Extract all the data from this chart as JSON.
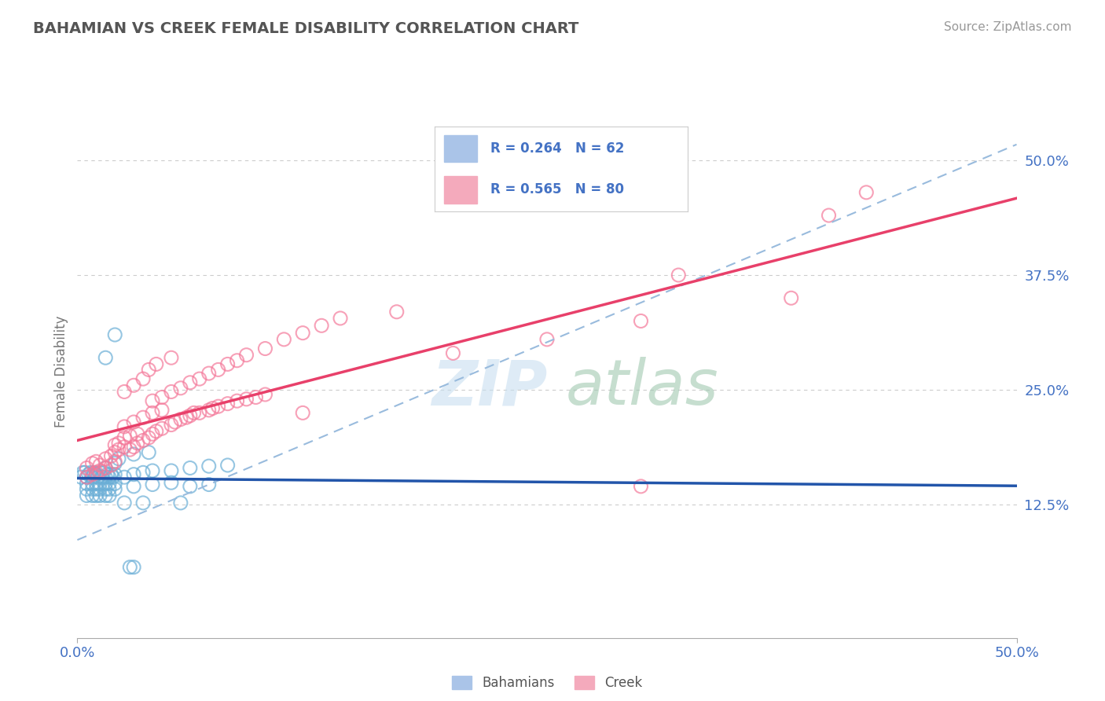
{
  "title": "BAHAMIAN VS CREEK FEMALE DISABILITY CORRELATION CHART",
  "source_text": "Source: ZipAtlas.com",
  "ylabel": "Female Disability",
  "xlim": [
    0.0,
    0.5
  ],
  "ylim": [
    -0.02,
    0.56
  ],
  "y_ticks": [
    0.125,
    0.25,
    0.375,
    0.5
  ],
  "y_tick_labels": [
    "12.5%",
    "25.0%",
    "37.5%",
    "50.0%"
  ],
  "x_ticks": [
    0.0,
    0.5
  ],
  "x_tick_labels": [
    "0.0%",
    "50.0%"
  ],
  "bahamian_color": "#6aaed6",
  "creek_color": "#f4799a",
  "bahamian_line_color": "#2255aa",
  "creek_line_color": "#e8406a",
  "dashed_line_color": "#99bbdd",
  "tick_label_color": "#4472c4",
  "title_color": "#555555",
  "axis_label_color": "#777777",
  "grid_color": "#cccccc",
  "watermark": "ZIPatlas",
  "bahamian_scatter": [
    [
      0.002,
      0.155
    ],
    [
      0.003,
      0.16
    ],
    [
      0.004,
      0.16
    ],
    [
      0.005,
      0.155
    ],
    [
      0.006,
      0.158
    ],
    [
      0.007,
      0.16
    ],
    [
      0.008,
      0.155
    ],
    [
      0.009,
      0.16
    ],
    [
      0.01,
      0.158
    ],
    [
      0.011,
      0.155
    ],
    [
      0.012,
      0.16
    ],
    [
      0.013,
      0.155
    ],
    [
      0.014,
      0.16
    ],
    [
      0.015,
      0.155
    ],
    [
      0.016,
      0.158
    ],
    [
      0.017,
      0.155
    ],
    [
      0.018,
      0.158
    ],
    [
      0.019,
      0.155
    ],
    [
      0.02,
      0.158
    ],
    [
      0.005,
      0.148
    ],
    [
      0.008,
      0.148
    ],
    [
      0.01,
      0.148
    ],
    [
      0.012,
      0.148
    ],
    [
      0.015,
      0.148
    ],
    [
      0.017,
      0.148
    ],
    [
      0.02,
      0.148
    ],
    [
      0.005,
      0.142
    ],
    [
      0.008,
      0.142
    ],
    [
      0.01,
      0.142
    ],
    [
      0.012,
      0.142
    ],
    [
      0.015,
      0.142
    ],
    [
      0.017,
      0.142
    ],
    [
      0.02,
      0.142
    ],
    [
      0.005,
      0.135
    ],
    [
      0.008,
      0.135
    ],
    [
      0.01,
      0.135
    ],
    [
      0.012,
      0.135
    ],
    [
      0.015,
      0.135
    ],
    [
      0.017,
      0.135
    ],
    [
      0.025,
      0.155
    ],
    [
      0.03,
      0.158
    ],
    [
      0.035,
      0.16
    ],
    [
      0.04,
      0.162
    ],
    [
      0.05,
      0.162
    ],
    [
      0.06,
      0.165
    ],
    [
      0.07,
      0.167
    ],
    [
      0.08,
      0.168
    ],
    [
      0.022,
      0.175
    ],
    [
      0.03,
      0.18
    ],
    [
      0.038,
      0.182
    ],
    [
      0.015,
      0.165
    ],
    [
      0.02,
      0.17
    ],
    [
      0.03,
      0.145
    ],
    [
      0.04,
      0.147
    ],
    [
      0.05,
      0.149
    ],
    [
      0.06,
      0.145
    ],
    [
      0.07,
      0.147
    ],
    [
      0.025,
      0.127
    ],
    [
      0.035,
      0.127
    ],
    [
      0.055,
      0.127
    ],
    [
      0.02,
      0.31
    ],
    [
      0.015,
      0.285
    ],
    [
      0.028,
      0.057
    ],
    [
      0.03,
      0.057
    ]
  ],
  "creek_scatter": [
    [
      0.005,
      0.165
    ],
    [
      0.008,
      0.17
    ],
    [
      0.01,
      0.172
    ],
    [
      0.012,
      0.168
    ],
    [
      0.015,
      0.175
    ],
    [
      0.018,
      0.178
    ],
    [
      0.02,
      0.182
    ],
    [
      0.022,
      0.185
    ],
    [
      0.025,
      0.188
    ],
    [
      0.028,
      0.185
    ],
    [
      0.005,
      0.155
    ],
    [
      0.008,
      0.158
    ],
    [
      0.01,
      0.16
    ],
    [
      0.012,
      0.162
    ],
    [
      0.015,
      0.165
    ],
    [
      0.018,
      0.168
    ],
    [
      0.02,
      0.172
    ],
    [
      0.03,
      0.188
    ],
    [
      0.032,
      0.192
    ],
    [
      0.035,
      0.195
    ],
    [
      0.038,
      0.198
    ],
    [
      0.04,
      0.202
    ],
    [
      0.042,
      0.205
    ],
    [
      0.045,
      0.208
    ],
    [
      0.05,
      0.212
    ],
    [
      0.052,
      0.215
    ],
    [
      0.055,
      0.218
    ],
    [
      0.058,
      0.22
    ],
    [
      0.06,
      0.222
    ],
    [
      0.062,
      0.225
    ],
    [
      0.065,
      0.225
    ],
    [
      0.07,
      0.228
    ],
    [
      0.072,
      0.23
    ],
    [
      0.075,
      0.232
    ],
    [
      0.08,
      0.235
    ],
    [
      0.085,
      0.238
    ],
    [
      0.09,
      0.24
    ],
    [
      0.095,
      0.242
    ],
    [
      0.1,
      0.245
    ],
    [
      0.025,
      0.21
    ],
    [
      0.03,
      0.215
    ],
    [
      0.035,
      0.22
    ],
    [
      0.04,
      0.225
    ],
    [
      0.045,
      0.228
    ],
    [
      0.025,
      0.198
    ],
    [
      0.028,
      0.2
    ],
    [
      0.032,
      0.202
    ],
    [
      0.02,
      0.19
    ],
    [
      0.022,
      0.192
    ],
    [
      0.04,
      0.238
    ],
    [
      0.045,
      0.242
    ],
    [
      0.05,
      0.248
    ],
    [
      0.055,
      0.252
    ],
    [
      0.06,
      0.258
    ],
    [
      0.065,
      0.262
    ],
    [
      0.07,
      0.268
    ],
    [
      0.075,
      0.272
    ],
    [
      0.08,
      0.278
    ],
    [
      0.085,
      0.282
    ],
    [
      0.09,
      0.288
    ],
    [
      0.1,
      0.295
    ],
    [
      0.11,
      0.305
    ],
    [
      0.12,
      0.312
    ],
    [
      0.13,
      0.32
    ],
    [
      0.14,
      0.328
    ],
    [
      0.05,
      0.285
    ],
    [
      0.025,
      0.248
    ],
    [
      0.03,
      0.255
    ],
    [
      0.035,
      0.262
    ],
    [
      0.038,
      0.272
    ],
    [
      0.042,
      0.278
    ],
    [
      0.12,
      0.225
    ],
    [
      0.17,
      0.335
    ],
    [
      0.2,
      0.29
    ],
    [
      0.25,
      0.305
    ],
    [
      0.3,
      0.325
    ],
    [
      0.3,
      0.145
    ],
    [
      0.32,
      0.375
    ],
    [
      0.38,
      0.35
    ],
    [
      0.4,
      0.44
    ],
    [
      0.42,
      0.465
    ]
  ]
}
